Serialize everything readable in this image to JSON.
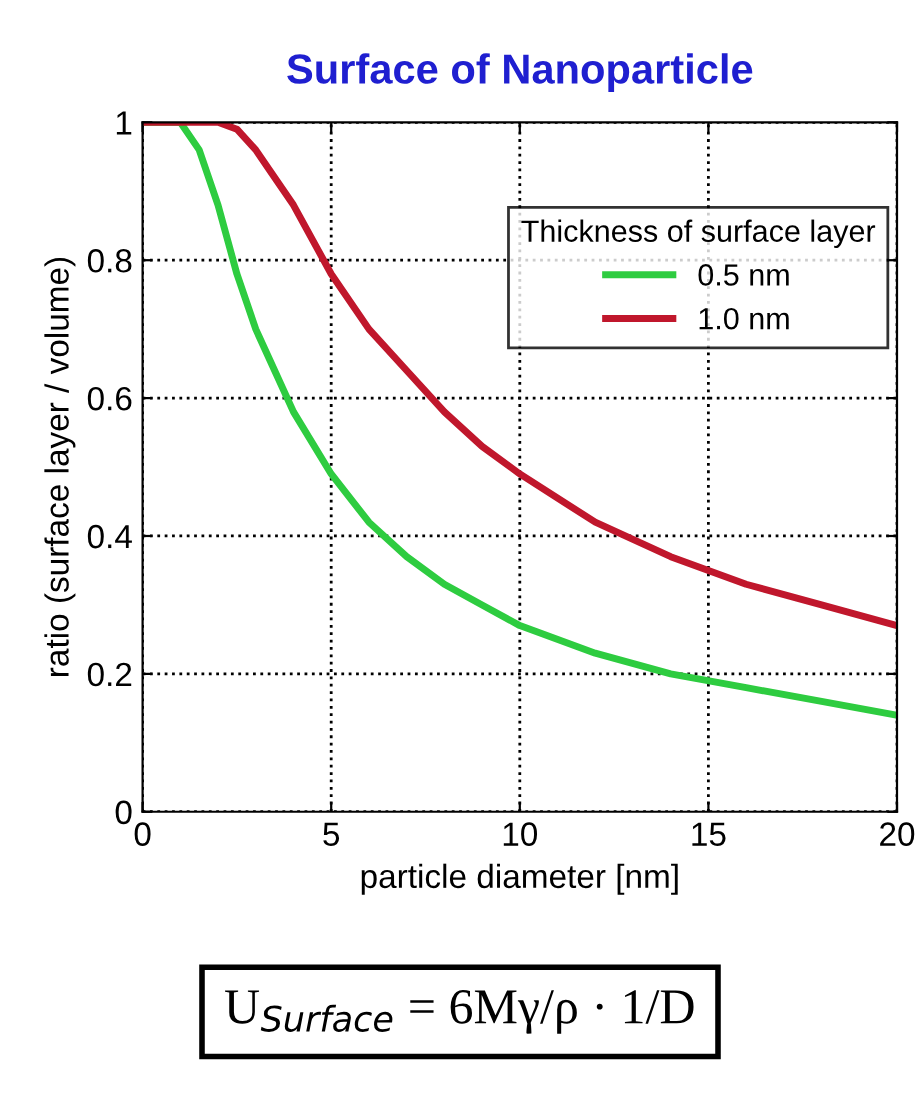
{
  "chart_data": {
    "type": "line",
    "title": "Surface of Nanoparticle",
    "xlabel": "particle diameter [nm]",
    "ylabel": "ratio (surface layer / volume)",
    "legend_title": "Thickness of surface layer",
    "series": [
      {
        "name": "0.5 nm",
        "color": "#2ecc40",
        "x": [
          0,
          1,
          1.5,
          2,
          2.5,
          3,
          3.5,
          4,
          5,
          6,
          7,
          8,
          9,
          10,
          12,
          14,
          16,
          18,
          20
        ],
        "values": [
          1,
          1,
          0.96,
          0.88,
          0.78,
          0.7,
          0.64,
          0.58,
          0.49,
          0.42,
          0.37,
          0.33,
          0.3,
          0.27,
          0.23,
          0.2,
          0.18,
          0.16,
          0.14
        ]
      },
      {
        "name": "1.0 nm",
        "color": "#c0172c",
        "x": [
          0,
          1,
          2,
          2.5,
          3,
          3.5,
          4,
          5,
          6,
          7,
          8,
          9,
          10,
          12,
          14,
          16,
          18,
          20
        ],
        "values": [
          1,
          1,
          1,
          0.99,
          0.96,
          0.92,
          0.88,
          0.78,
          0.7,
          0.64,
          0.58,
          0.53,
          0.49,
          0.42,
          0.37,
          0.33,
          0.3,
          0.27
        ]
      }
    ],
    "xlim": [
      0,
      20
    ],
    "ylim": [
      0,
      1
    ],
    "xticks": [
      0,
      5,
      10,
      15,
      20
    ],
    "yticks": [
      0,
      0.2,
      0.4,
      0.6,
      0.8,
      1
    ],
    "grid": true,
    "legend": "top right",
    "line_style": "solid",
    "marker": "none",
    "annotations": [
      "U$_{Surface}$ = 6Mγ/ρ · 1/D"
    ]
  }
}
